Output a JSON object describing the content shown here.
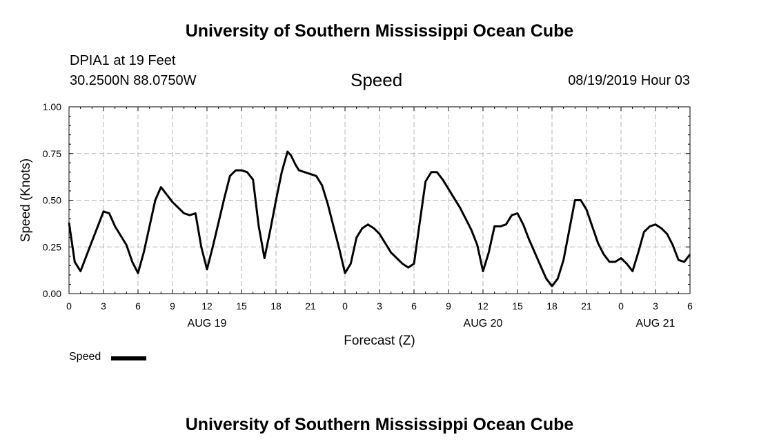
{
  "header": {
    "top_title": "University of Southern Mississippi Ocean Cube",
    "station": "DPIA1 at 19 Feet",
    "coords": "30.2500N 88.0750W",
    "chart_title": "Speed",
    "date": "08/19/2019 Hour 03",
    "bottom_title": "University of Southern Mississippi Ocean Cube"
  },
  "legend": {
    "label": "Speed",
    "color": "#000000"
  },
  "chart_data": {
    "type": "line",
    "title": "Speed",
    "xlabel": "Forecast (Z)",
    "ylabel": "Speed (Knots)",
    "xlim": [
      0,
      54
    ],
    "ylim": [
      0,
      1
    ],
    "yticks": [
      0.0,
      0.25,
      0.5,
      0.75,
      1.0
    ],
    "ytick_labels": [
      "0.00",
      "0.25",
      "0.50",
      "0.75",
      "1.00"
    ],
    "xticks": [
      0,
      3,
      6,
      9,
      12,
      15,
      18,
      21,
      24,
      27,
      30,
      33,
      36,
      39,
      42,
      45,
      48,
      51,
      54
    ],
    "xtick_labels": [
      "0",
      "3",
      "6",
      "9",
      "12",
      "15",
      "18",
      "21",
      "0",
      "3",
      "6",
      "9",
      "12",
      "15",
      "18",
      "21",
      "0",
      "3",
      "6"
    ],
    "date_labels": [
      {
        "x": 12,
        "label": "AUG 19"
      },
      {
        "x": 36,
        "label": "AUG 20"
      },
      {
        "x": 51,
        "label": "AUG 21"
      }
    ],
    "grid": true,
    "series": [
      {
        "name": "Speed",
        "color": "#000000",
        "x": [
          0,
          0.5,
          1,
          1.5,
          2,
          2.5,
          3,
          3.5,
          4,
          4.5,
          5,
          5.5,
          6,
          6.5,
          7,
          7.5,
          8,
          8.5,
          9,
          9.5,
          10,
          10.5,
          11,
          11.5,
          12,
          12.5,
          13,
          13.5,
          14,
          14.5,
          15,
          15.5,
          16,
          16.5,
          17,
          17.5,
          18,
          18.5,
          19,
          19.3,
          19.7,
          20,
          20.5,
          21,
          21.5,
          22,
          22.5,
          23,
          23.5,
          24,
          24.5,
          25,
          25.5,
          26,
          26.5,
          27,
          27.5,
          28,
          28.5,
          29,
          29.5,
          30,
          30.5,
          31,
          31.5,
          32,
          32.5,
          33,
          33.5,
          34,
          34.5,
          35,
          35.5,
          36,
          36.5,
          37,
          37.5,
          38,
          38.5,
          39,
          39.5,
          40,
          40.5,
          41,
          41.5,
          42,
          42.5,
          43,
          43.5,
          44,
          44.5,
          45,
          45.5,
          46,
          46.5,
          47,
          47.5,
          48,
          48.5,
          49,
          49.5,
          50,
          50.5,
          51,
          51.5,
          52,
          52.5,
          53,
          53.5,
          54
        ],
        "values": [
          0.38,
          0.17,
          0.12,
          0.2,
          0.28,
          0.36,
          0.44,
          0.43,
          0.36,
          0.31,
          0.26,
          0.17,
          0.11,
          0.22,
          0.36,
          0.5,
          0.57,
          0.53,
          0.49,
          0.46,
          0.43,
          0.42,
          0.43,
          0.25,
          0.13,
          0.25,
          0.38,
          0.51,
          0.63,
          0.66,
          0.66,
          0.65,
          0.61,
          0.36,
          0.19,
          0.34,
          0.5,
          0.65,
          0.76,
          0.74,
          0.69,
          0.66,
          0.65,
          0.64,
          0.63,
          0.58,
          0.48,
          0.36,
          0.24,
          0.11,
          0.16,
          0.3,
          0.35,
          0.37,
          0.35,
          0.32,
          0.27,
          0.22,
          0.19,
          0.16,
          0.14,
          0.16,
          0.38,
          0.6,
          0.65,
          0.65,
          0.61,
          0.56,
          0.51,
          0.46,
          0.4,
          0.34,
          0.26,
          0.12,
          0.22,
          0.36,
          0.36,
          0.37,
          0.42,
          0.43,
          0.37,
          0.29,
          0.22,
          0.15,
          0.08,
          0.04,
          0.08,
          0.18,
          0.34,
          0.5,
          0.5,
          0.45,
          0.36,
          0.27,
          0.21,
          0.17,
          0.17,
          0.19,
          0.16,
          0.12,
          0.22,
          0.33,
          0.36,
          0.37,
          0.35,
          0.32,
          0.26,
          0.18,
          0.17,
          0.21
        ]
      }
    ]
  }
}
